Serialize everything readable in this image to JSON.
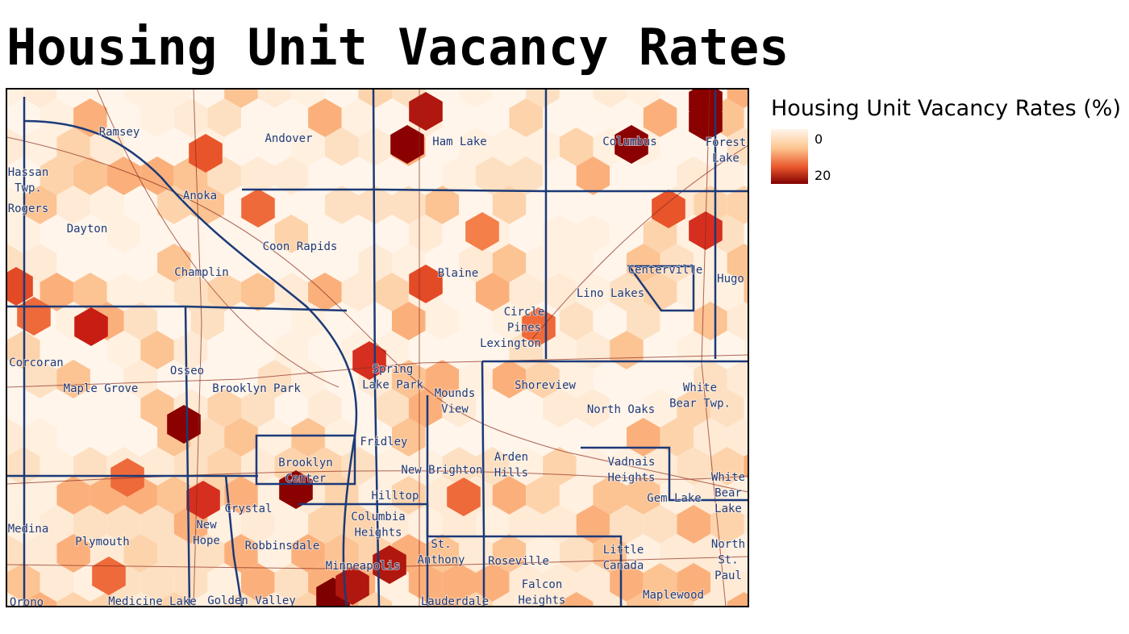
{
  "title": "Housing Unit Vacancy Rates",
  "legend": {
    "title": "Housing Unit Vacancy Rates (%)",
    "min": 0,
    "max": 20
  },
  "places": [
    [
      "Ramsey"
    ],
    [
      "Andover"
    ],
    [
      "Ham Lake"
    ],
    [
      "Columbus"
    ],
    [
      "Forest",
      "Lake"
    ],
    [
      "Hassan",
      "Twp."
    ],
    [
      "Anoka"
    ],
    [
      "Rogers"
    ],
    [
      "Dayton"
    ],
    [
      "Coon Rapids"
    ],
    [
      "Champlin"
    ],
    [
      "Blaine"
    ],
    [
      "Centerville"
    ],
    [
      "Hugo"
    ],
    [
      "Lino Lakes"
    ],
    [
      "Circle",
      "Pines"
    ],
    [
      "Lexington"
    ],
    [
      "Corcoran"
    ],
    [
      "Spring",
      "Lake Park"
    ],
    [
      "Osseo"
    ],
    [
      "Maple Grove"
    ],
    [
      "Brooklyn Park"
    ],
    [
      "Mounds",
      "View"
    ],
    [
      "Shoreview"
    ],
    [
      "White",
      "Bear Twp."
    ],
    [
      "North Oaks"
    ],
    [
      "Fridley"
    ],
    [
      "Brooklyn",
      "Center"
    ],
    [
      "Arden",
      "Hills"
    ],
    [
      "New Brighton"
    ],
    [
      "Vadnais",
      "Heights"
    ],
    [
      "White",
      "Bear",
      "Lake"
    ],
    [
      "Hilltop"
    ],
    [
      "Gem Lake"
    ],
    [
      "Crystal"
    ],
    [
      "Columbia",
      "Heights"
    ],
    [
      "Medina"
    ],
    [
      "New",
      "Hope"
    ],
    [
      "Plymouth"
    ],
    [
      "Robbinsdale"
    ],
    [
      "St.",
      "Anthony"
    ],
    [
      "Roseville"
    ],
    [
      "Little",
      "Canada"
    ],
    [
      "North",
      "St.",
      "Paul"
    ],
    [
      "Minneapolis"
    ],
    [
      "Falcon",
      "Heights"
    ],
    [
      "Maplewood"
    ],
    [
      "Orono"
    ],
    [
      "Medicine Lake"
    ],
    [
      "Golden Valley"
    ],
    [
      "Lauderdale"
    ]
  ]
}
